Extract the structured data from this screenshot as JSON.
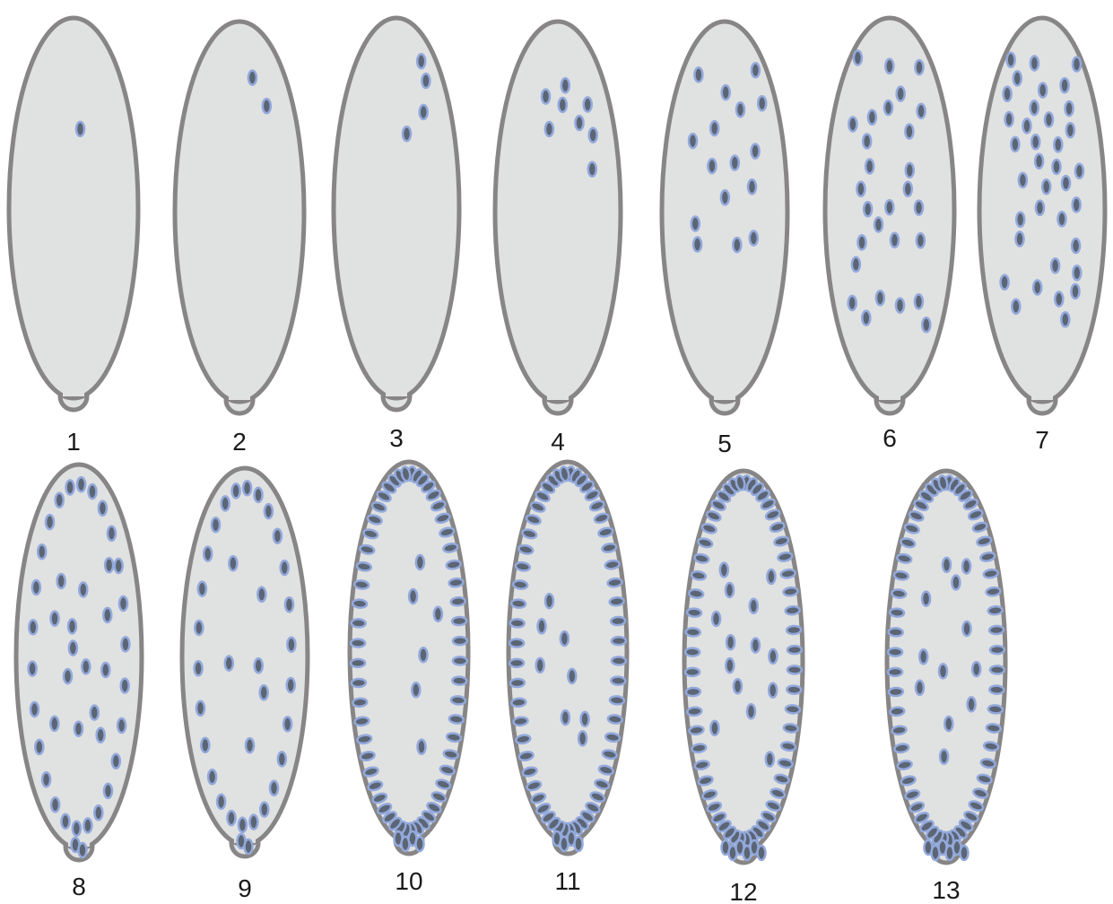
{
  "embryos": [
    {
      "label": "1"
    },
    {
      "label": "2"
    },
    {
      "label": "3"
    },
    {
      "label": "4"
    },
    {
      "label": "5"
    },
    {
      "label": "6"
    },
    {
      "label": "7"
    },
    {
      "label": "8"
    },
    {
      "label": "9"
    },
    {
      "label": "10"
    },
    {
      "label": "11"
    },
    {
      "label": "12"
    },
    {
      "label": "13"
    }
  ]
}
